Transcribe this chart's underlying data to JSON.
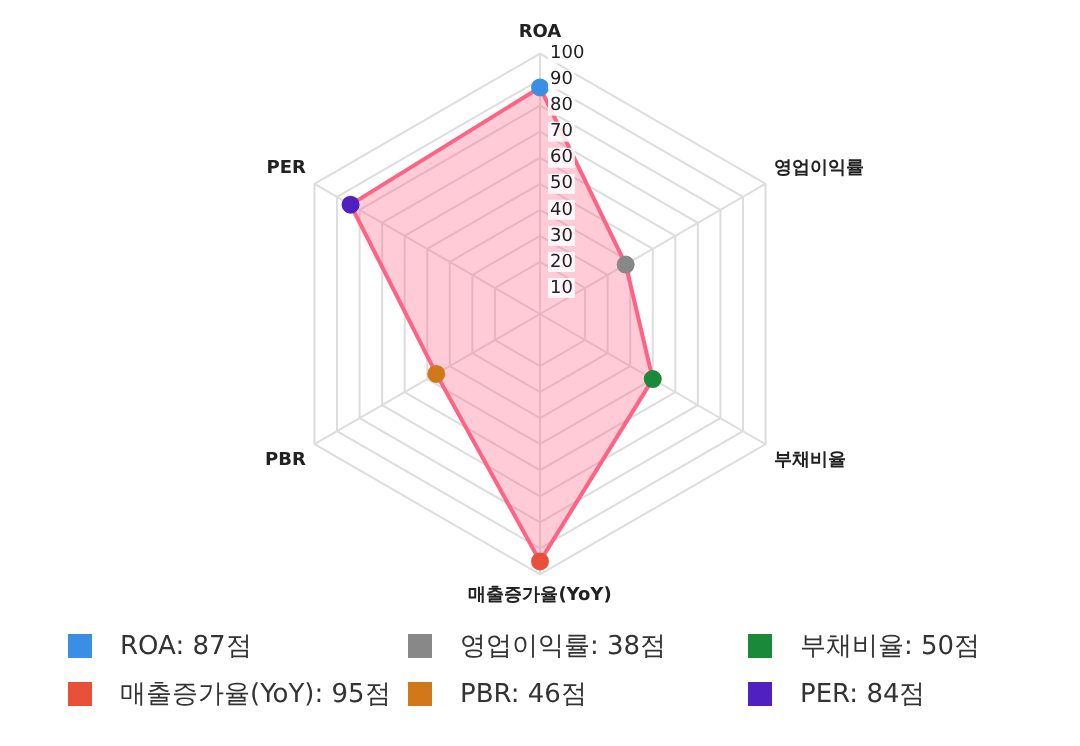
{
  "chart_data": {
    "type": "radar",
    "categories": [
      "ROA",
      "영업이익률",
      "부채비율",
      "매출증가율(YoY)",
      "PBR",
      "PER"
    ],
    "series": [
      {
        "color": "#ff6384",
        "values": [
          87,
          38,
          50,
          95,
          46,
          84
        ],
        "colors": [
          "#3a8ee6",
          "#888888",
          "#1a8a3a",
          "#e8503a",
          "#d0781a",
          "#5020c0"
        ]
      }
    ],
    "ylim": [
      0,
      100
    ],
    "yticks": [
      10,
      20,
      30,
      40,
      50,
      60,
      70,
      80,
      90,
      100
    ],
    "grid": true,
    "annotations": [
      "ROA: 87점",
      "영업이익률: 38점",
      "부채비율: 50점",
      "매출증가율(YoY): 95점",
      "PBR: 46점",
      "PER: 84점"
    ]
  }
}
